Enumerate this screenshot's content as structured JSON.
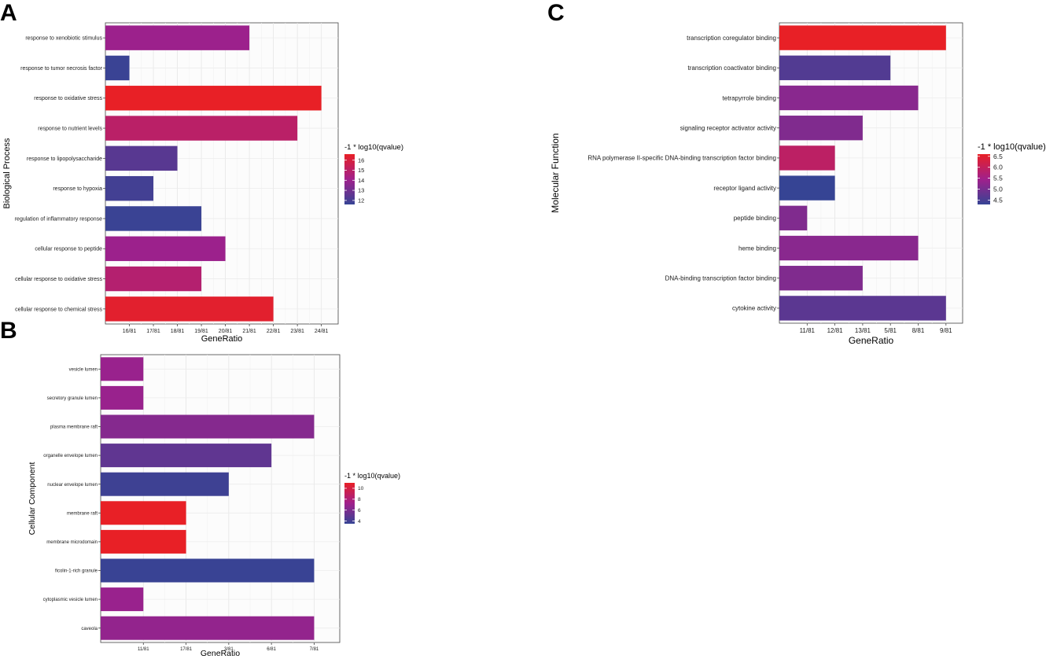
{
  "chart_data": [
    {
      "type": "bar",
      "orientation": "horizontal",
      "panel_label": "A",
      "xlabel": "GeneRatio",
      "ylabel": "Biological Process",
      "x_ticks": [
        "16/81",
        "17/81",
        "18/81",
        "19/81",
        "20/81",
        "21/81",
        "22/81",
        "23/81",
        "24/81"
      ],
      "x_range": [
        15,
        24.7
      ],
      "color_title": "-1 * log10(qvalue)",
      "color_ticks": [
        12,
        13,
        14,
        15,
        16
      ],
      "color_range": [
        11.6,
        16.6
      ],
      "categories": [
        "response to xenobiotic stimulus",
        "response to tumor necrosis factor",
        "response to oxidative stress",
        "response to nutrient levels",
        "response to lipopolysaccharide",
        "response to hypoxia",
        "regulation of inflammatory response",
        "cellular response to peptide",
        "cellular response to oxidative stress",
        "cellular response to chemical stress"
      ],
      "values": [
        21,
        16,
        24,
        23,
        18,
        17,
        19,
        20,
        19,
        22
      ],
      "color_values": [
        14.0,
        11.7,
        16.6,
        15.0,
        12.4,
        11.9,
        11.7,
        14.0,
        14.8,
        16.4
      ]
    },
    {
      "type": "bar",
      "orientation": "horizontal",
      "panel_label": "B",
      "xlabel": "GeneRatio",
      "ylabel": "Cellular Component",
      "x_ticks": [
        "11/81",
        "17/81",
        "3/81",
        "6/81",
        "7/81"
      ],
      "x_range": [
        0,
        5.6
      ],
      "color_title": "-1 * log10(qvalue)",
      "color_ticks": [
        4,
        6,
        8,
        10
      ],
      "color_range": [
        3.5,
        11
      ],
      "categories": [
        "vesicle lumen",
        "secretory granule lumen",
        "plasma membrane raft",
        "organelle envelope lumen",
        "nuclear envelope lumen",
        "membrane raft",
        "membrane microdomain",
        "ficolin-1-rich granule",
        "cytoplasmic vesicle lumen",
        "caveola"
      ],
      "values": [
        1,
        1,
        5,
        4,
        3,
        2,
        2,
        5,
        1,
        5
      ],
      "color_values": [
        7.0,
        7.0,
        6.3,
        5.0,
        3.8,
        11.0,
        11.0,
        3.6,
        7.0,
        6.8
      ]
    },
    {
      "type": "bar",
      "orientation": "horizontal",
      "panel_label": "C",
      "xlabel": "GeneRatio",
      "ylabel": "Molecular Function",
      "x_ticks": [
        "11/81",
        "12/81",
        "13/81",
        "5/81",
        "8/81",
        "9/81"
      ],
      "x_range": [
        0,
        6.6
      ],
      "color_title": "-1 * log10(qvalue)",
      "color_ticks": [
        4.5,
        5.0,
        5.5,
        6.0,
        6.5
      ],
      "color_range": [
        4.3,
        6.6
      ],
      "categories": [
        "transcription coregulator binding",
        "transcription coactivator binding",
        "tetrapyrrole binding",
        "signaling receptor activator activity",
        "RNA polymerase II-specific DNA-binding transcription factor binding",
        "receptor ligand activity",
        "peptide binding",
        "heme binding",
        "DNA-binding transcription factor binding",
        "cytokine activity"
      ],
      "values": [
        6,
        4,
        5,
        3,
        2,
        2,
        1,
        5,
        3,
        6
      ],
      "color_values": [
        6.6,
        4.6,
        5.2,
        5.1,
        5.9,
        4.3,
        5.1,
        5.2,
        5.1,
        4.7
      ]
    }
  ]
}
